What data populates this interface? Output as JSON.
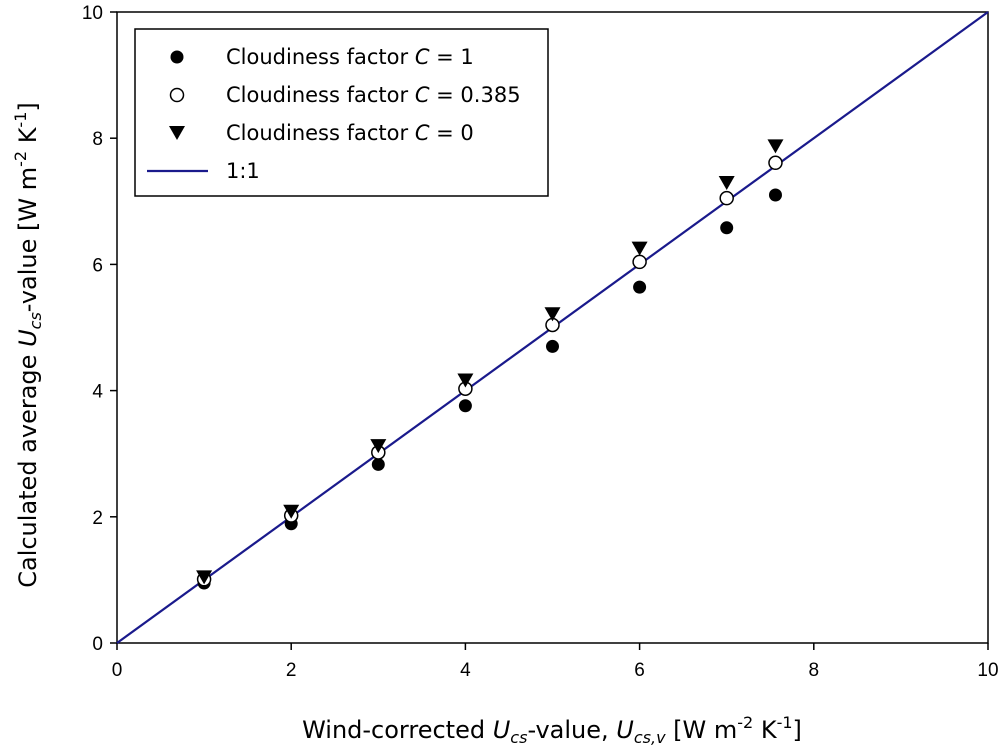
{
  "chart_data": {
    "type": "scatter",
    "xlim": [
      0,
      10
    ],
    "ylim": [
      0,
      10
    ],
    "xticks": [
      "0",
      "2",
      "4",
      "6",
      "8",
      "10"
    ],
    "yticks": [
      "0",
      "2",
      "4",
      "6",
      "8",
      "10"
    ],
    "x": [
      1,
      2,
      3,
      4,
      5,
      6,
      7,
      7.56
    ],
    "xlabel": {
      "prefix": "Wind-corrected ",
      "sym1": "U",
      "sub1": "cs",
      "mid": "-value, ",
      "sym2": "U",
      "sub2": "cs,v",
      "unit_pre": " [W m",
      "sup1": "-2",
      "unit_mid": " K",
      "sup2": "-1",
      "unit_post": "]"
    },
    "ylabel": {
      "prefix": "Calculated average ",
      "sym": "U",
      "sub": "cs",
      "mid": "-value [W m",
      "sup1": "-2",
      "unit_mid": " K",
      "sup2": "-1",
      "unit_post": "]"
    },
    "series": [
      {
        "name_prefix": "Cloudiness factor ",
        "name_sym": "C",
        "name_suffix": " = 1",
        "marker": "filled-circle",
        "color": "#000000",
        "values": [
          0.95,
          1.89,
          2.83,
          3.76,
          4.7,
          5.64,
          6.58,
          7.1
        ]
      },
      {
        "name_prefix": "Cloudiness factor ",
        "name_sym": "C",
        "name_suffix": " = 0.385",
        "marker": "open-circle",
        "color": "#000000",
        "values": [
          1.01,
          2.02,
          3.02,
          4.03,
          5.04,
          6.04,
          7.05,
          7.61
        ]
      },
      {
        "name_prefix": "Cloudiness factor ",
        "name_sym": "C",
        "name_suffix": " = 0",
        "marker": "filled-triangle-down",
        "color": "#000000",
        "values": [
          1.04,
          2.08,
          3.12,
          4.16,
          5.21,
          6.25,
          7.29,
          7.87
        ]
      }
    ],
    "reference_line": {
      "name": "1:1",
      "color": "#1a1a8c",
      "from": [
        0,
        0
      ],
      "to": [
        10,
        10
      ]
    },
    "legend_position": "top-left",
    "grid": false
  }
}
